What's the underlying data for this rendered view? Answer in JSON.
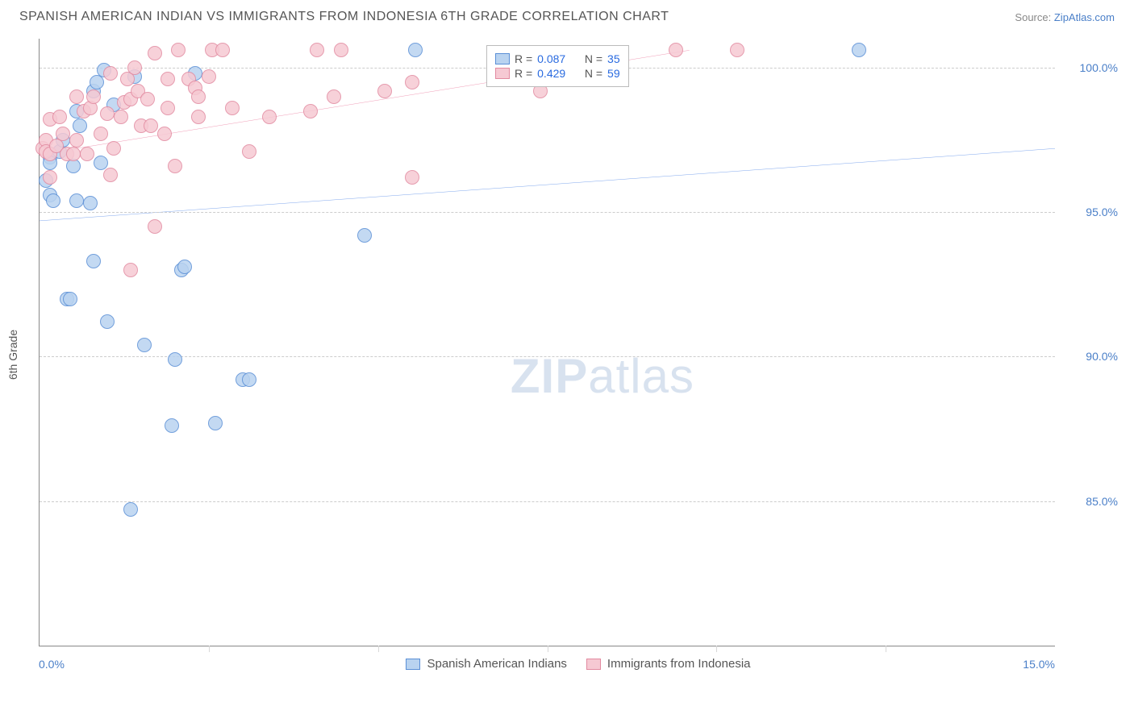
{
  "header": {
    "title": "SPANISH AMERICAN INDIAN VS IMMIGRANTS FROM INDONESIA 6TH GRADE CORRELATION CHART",
    "source_label": "Source:",
    "source_link": "ZipAtlas.com"
  },
  "watermark": {
    "zip": "ZIP",
    "atlas": "atlas"
  },
  "chart": {
    "type": "scatter",
    "ylabel": "6th Grade",
    "background_color": "#ffffff",
    "grid_color": "#cccccc",
    "axis_color": "#888888",
    "xlim": [
      0,
      15
    ],
    "ylim": [
      80,
      101
    ],
    "yticks": [
      85.0,
      90.0,
      95.0,
      100.0
    ],
    "ytick_labels": [
      "85.0%",
      "90.0%",
      "95.0%",
      "100.0%"
    ],
    "xticks_minor": [
      2.5,
      5.0,
      7.5,
      10.0,
      12.5
    ],
    "xtick_labels": {
      "left": "0.0%",
      "right": "15.0%"
    },
    "marker_radius": 9,
    "marker_stroke": 1.5,
    "trend_line_width": 2,
    "series": [
      {
        "name": "Spanish American Indians",
        "color_fill": "#b9d3f0",
        "color_stroke": "#5a8fd6",
        "trend_color": "#2a6be0",
        "trend": {
          "x1": 0,
          "y1": 94.7,
          "x2": 15,
          "y2": 97.2
        },
        "R": "0.087",
        "N": "35",
        "points": [
          [
            0.15,
            96.9
          ],
          [
            0.15,
            96.7
          ],
          [
            0.1,
            96.1
          ],
          [
            0.15,
            95.6
          ],
          [
            0.2,
            95.4
          ],
          [
            0.3,
            97.1
          ],
          [
            0.5,
            96.6
          ],
          [
            0.35,
            97.5
          ],
          [
            0.55,
            98.5
          ],
          [
            0.6,
            98.0
          ],
          [
            0.8,
            99.2
          ],
          [
            0.85,
            99.5
          ],
          [
            0.95,
            99.9
          ],
          [
            1.1,
            98.7
          ],
          [
            1.4,
            99.7
          ],
          [
            0.9,
            96.7
          ],
          [
            0.55,
            95.4
          ],
          [
            0.75,
            95.3
          ],
          [
            0.4,
            92.0
          ],
          [
            0.45,
            92.0
          ],
          [
            0.8,
            93.3
          ],
          [
            1.0,
            91.2
          ],
          [
            1.35,
            84.7
          ],
          [
            1.55,
            90.4
          ],
          [
            2.0,
            89.9
          ],
          [
            1.95,
            87.6
          ],
          [
            2.1,
            93.0
          ],
          [
            2.15,
            93.1
          ],
          [
            2.6,
            87.7
          ],
          [
            3.0,
            89.2
          ],
          [
            3.1,
            89.2
          ],
          [
            2.3,
            99.8
          ],
          [
            4.8,
            94.2
          ],
          [
            5.55,
            100.6
          ],
          [
            12.1,
            100.6
          ]
        ]
      },
      {
        "name": "Immigrants from Indonesia",
        "color_fill": "#f6c9d3",
        "color_stroke": "#e28aa0",
        "trend_color": "#e65a87",
        "trend": {
          "x1": 0,
          "y1": 97.0,
          "x2": 9.6,
          "y2": 100.6
        },
        "R": "0.429",
        "N": "59",
        "points": [
          [
            0.05,
            97.2
          ],
          [
            0.1,
            97.5
          ],
          [
            0.1,
            97.1
          ],
          [
            0.15,
            97.0
          ],
          [
            0.15,
            96.2
          ],
          [
            0.15,
            98.2
          ],
          [
            0.25,
            97.3
          ],
          [
            0.3,
            98.3
          ],
          [
            0.35,
            97.7
          ],
          [
            0.4,
            97.0
          ],
          [
            0.5,
            97.0
          ],
          [
            0.55,
            97.5
          ],
          [
            0.55,
            99.0
          ],
          [
            0.65,
            98.5
          ],
          [
            0.7,
            97.0
          ],
          [
            0.75,
            98.6
          ],
          [
            0.8,
            99.0
          ],
          [
            0.9,
            97.7
          ],
          [
            1.0,
            98.4
          ],
          [
            1.05,
            99.8
          ],
          [
            1.05,
            96.3
          ],
          [
            1.1,
            97.2
          ],
          [
            1.2,
            98.3
          ],
          [
            1.25,
            98.8
          ],
          [
            1.3,
            99.6
          ],
          [
            1.35,
            98.9
          ],
          [
            1.4,
            100.0
          ],
          [
            1.45,
            99.2
          ],
          [
            1.5,
            98.0
          ],
          [
            1.6,
            98.9
          ],
          [
            1.65,
            98.0
          ],
          [
            1.7,
            100.5
          ],
          [
            1.85,
            97.7
          ],
          [
            1.9,
            99.6
          ],
          [
            1.9,
            98.6
          ],
          [
            2.0,
            96.6
          ],
          [
            2.05,
            100.6
          ],
          [
            2.2,
            99.6
          ],
          [
            2.3,
            99.3
          ],
          [
            2.35,
            99.0
          ],
          [
            2.5,
            99.7
          ],
          [
            2.55,
            100.6
          ],
          [
            2.7,
            100.6
          ],
          [
            2.85,
            98.6
          ],
          [
            1.35,
            93.0
          ],
          [
            1.7,
            94.5
          ],
          [
            2.35,
            98.3
          ],
          [
            3.1,
            97.1
          ],
          [
            3.4,
            98.3
          ],
          [
            4.0,
            98.5
          ],
          [
            4.1,
            100.6
          ],
          [
            4.45,
            100.6
          ],
          [
            4.35,
            99.0
          ],
          [
            5.1,
            99.2
          ],
          [
            5.5,
            99.5
          ],
          [
            5.5,
            96.2
          ],
          [
            7.4,
            99.2
          ],
          [
            9.4,
            100.6
          ],
          [
            10.3,
            100.6
          ]
        ]
      }
    ],
    "legend_box": {
      "R_label": "R =",
      "N_label": "N ="
    },
    "bottom_legend": {
      "items": [
        "Spanish American Indians",
        "Immigrants from Indonesia"
      ]
    }
  }
}
